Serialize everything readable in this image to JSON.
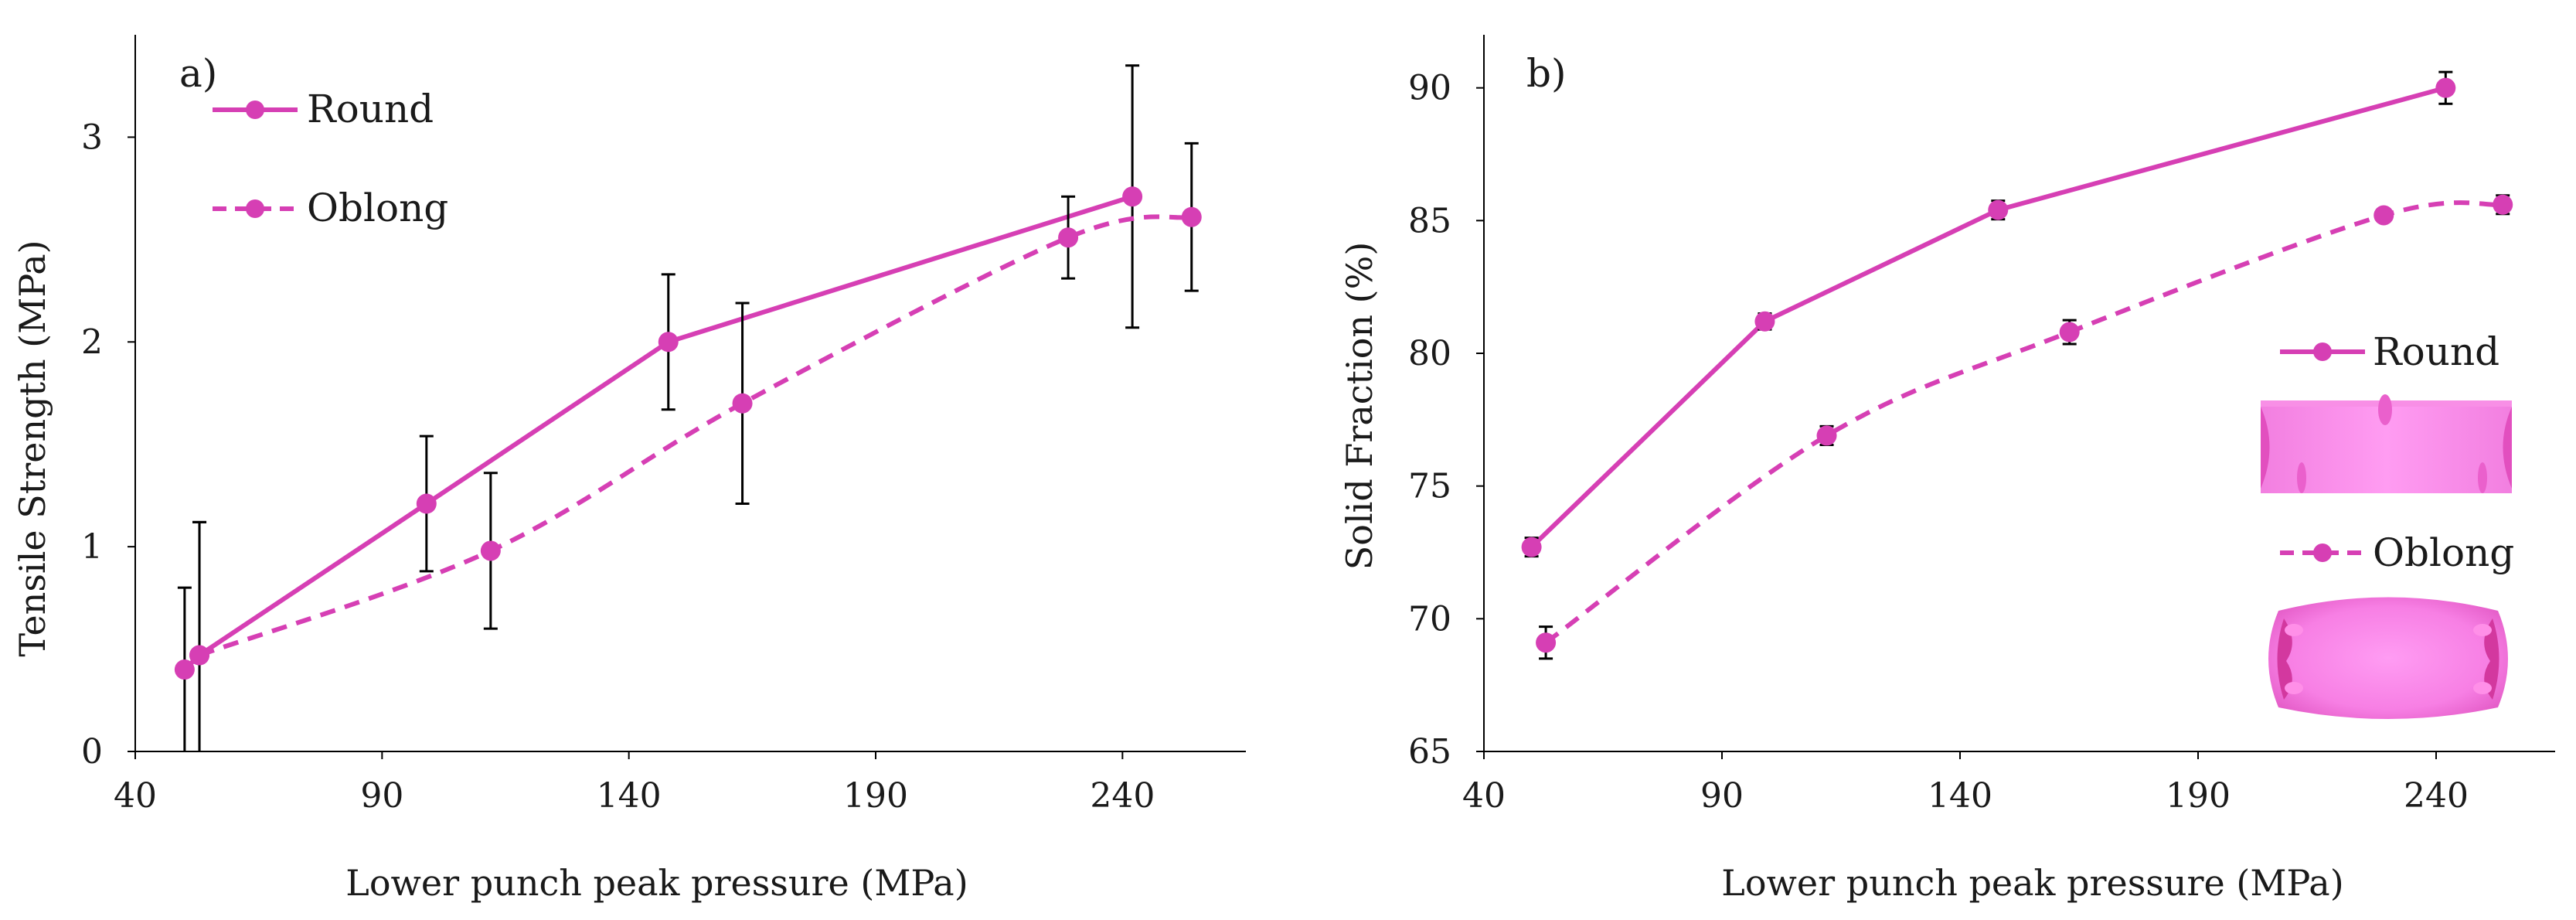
{
  "chart_data": [
    {
      "type": "line",
      "panel_label": "a)",
      "xlabel": "Lower punch peak pressure (MPa)",
      "ylabel": "Tensile Strength (MPa)",
      "xlim": [
        40,
        265
      ],
      "ylim": [
        0,
        3.5
      ],
      "xticks": [
        40,
        90,
        140,
        190,
        240
      ],
      "yticks": [
        0,
        1,
        2,
        3
      ],
      "grid": false,
      "legend_position": "top-left",
      "series": [
        {
          "name": "Round",
          "style": "solid",
          "x": [
            50,
            53,
            99,
            148,
            242
          ],
          "y": [
            0.4,
            0.47,
            1.21,
            2.0,
            2.71
          ],
          "err": [
            0.4,
            0.65,
            0.33,
            0.33,
            0.64
          ]
        },
        {
          "name": "Oblong",
          "style": "dashed",
          "x": [
            53,
            112,
            163,
            229,
            254
          ],
          "y": [
            0.47,
            0.98,
            1.7,
            2.51,
            2.61
          ],
          "err": [
            0.65,
            0.38,
            0.49,
            0.2,
            0.36
          ]
        }
      ],
      "color": "#d63fb4"
    },
    {
      "type": "line",
      "panel_label": "b)",
      "xlabel": "Lower punch peak pressure (MPa)",
      "ylabel": "Solid Fraction (%)",
      "xlim": [
        40,
        265
      ],
      "ylim": [
        65,
        92
      ],
      "xticks": [
        40,
        90,
        140,
        190,
        240
      ],
      "yticks": [
        65,
        70,
        75,
        80,
        85,
        90
      ],
      "grid": false,
      "legend_position": "center-right",
      "series": [
        {
          "name": "Round",
          "style": "solid",
          "x": [
            50,
            99,
            148,
            242
          ],
          "y": [
            72.7,
            81.2,
            85.4,
            90.0
          ],
          "err": [
            0.35,
            0.3,
            0.35,
            0.6
          ]
        },
        {
          "name": "Oblong",
          "style": "dashed",
          "x": [
            53,
            112,
            163,
            229,
            254
          ],
          "y": [
            69.1,
            76.9,
            80.8,
            85.2,
            85.6
          ],
          "err": [
            0.6,
            0.35,
            0.45,
            0.2,
            0.35
          ]
        }
      ],
      "color": "#d63fb4"
    }
  ]
}
